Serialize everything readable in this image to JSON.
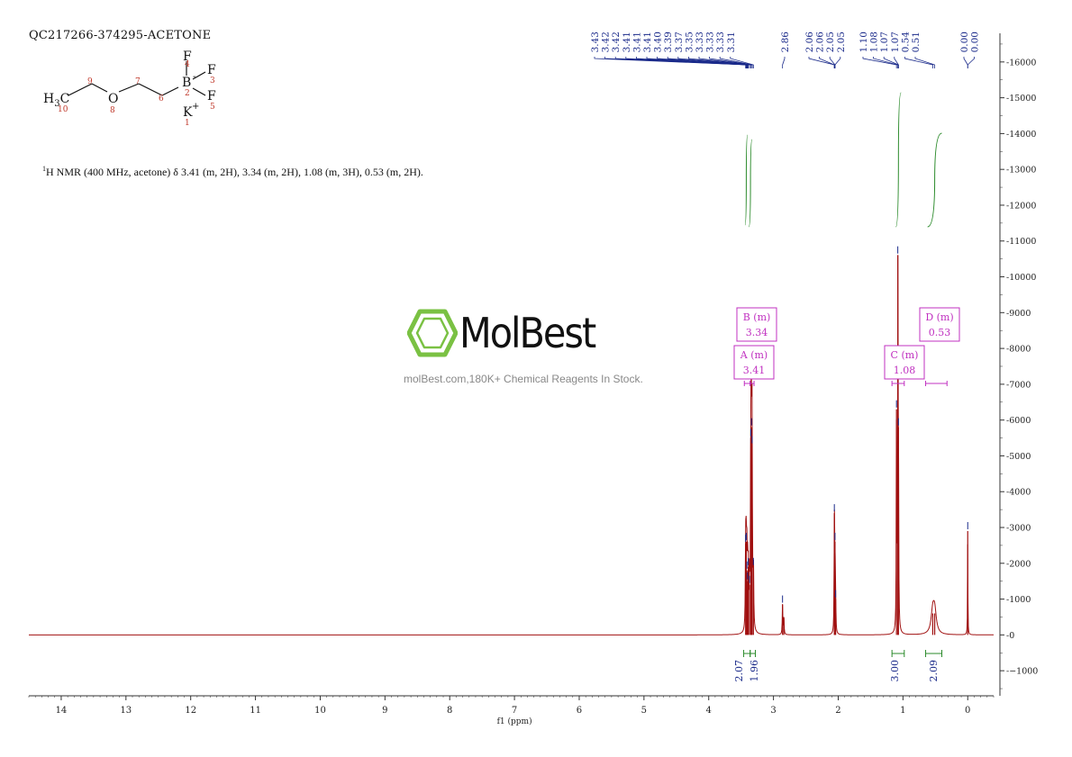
{
  "header": {
    "sample_id": "QC217266-374295-ACETONE",
    "nmr_text_pre": "H NMR (400 MHz, acetone) δ 3.41 (m, 2H), 3.34 (m, 2H), 1.08 (m, 3H), 0.53 (m, 2H).",
    "nmr_superscript": "1"
  },
  "structure": {
    "labels": [
      "H3C",
      "O",
      "B",
      "F",
      "F",
      "F",
      "K+"
    ],
    "atom_numbers": [
      "10",
      "9",
      "8",
      "7",
      "6",
      "2",
      "4",
      "3",
      "5",
      "1"
    ]
  },
  "watermark": {
    "brand": "MolBest",
    "tagline": "molBest.com,180K+ Chemical Reagents In Stock.",
    "brand_color": "#7ac143"
  },
  "chart_data": {
    "type": "line",
    "xlabel": "f1 (ppm)",
    "xlim": [
      14.5,
      -0.4
    ],
    "ylim": [
      -1700,
      16800
    ],
    "x_ticks": [
      14,
      13,
      12,
      11,
      10,
      9,
      8,
      7,
      6,
      5,
      4,
      3,
      2,
      1,
      0
    ],
    "y_ticks": [
      -1000,
      0,
      1000,
      2000,
      3000,
      4000,
      5000,
      6000,
      7000,
      8000,
      9000,
      10000,
      11000,
      12000,
      13000,
      14000,
      15000,
      16000
    ],
    "peaks": [
      {
        "ppm": 3.43,
        "height": 2550,
        "width": 0.005
      },
      {
        "ppm": 3.42,
        "height": 2600,
        "width": 0.005
      },
      {
        "ppm": 3.41,
        "height": 1800,
        "width": 0.005
      },
      {
        "ppm": 3.4,
        "height": 1500,
        "width": 0.005
      },
      {
        "ppm": 3.39,
        "height": 1900,
        "width": 0.005
      },
      {
        "ppm": 3.37,
        "height": 1400,
        "width": 0.005
      },
      {
        "ppm": 3.35,
        "height": 5500,
        "width": 0.005
      },
      {
        "ppm": 3.34,
        "height": 5800,
        "width": 0.005
      },
      {
        "ppm": 3.33,
        "height": 5300,
        "width": 0.005
      },
      {
        "ppm": 3.31,
        "height": 1900,
        "width": 0.005
      },
      {
        "ppm": 2.86,
        "height": 850,
        "width": 0.005
      },
      {
        "ppm": 2.84,
        "height": 500,
        "width": 0.005
      },
      {
        "ppm": 2.06,
        "height": 3400,
        "width": 0.004
      },
      {
        "ppm": 2.05,
        "height": 2600,
        "width": 0.004
      },
      {
        "ppm": 2.04,
        "height": 1000,
        "width": 0.004
      },
      {
        "ppm": 1.1,
        "height": 6300,
        "width": 0.004
      },
      {
        "ppm": 1.08,
        "height": 10600,
        "width": 0.004
      },
      {
        "ppm": 1.07,
        "height": 5800,
        "width": 0.004
      },
      {
        "ppm": 0.54,
        "height": 600,
        "width": 0.03
      },
      {
        "ppm": 0.51,
        "height": 600,
        "width": 0.03
      },
      {
        "ppm": 0.0,
        "height": 2900,
        "width": 0.003
      }
    ],
    "peak_labels": [
      "3.43",
      "3.42",
      "3.42",
      "3.41",
      "3.41",
      "3.41",
      "3.40",
      "3.39",
      "3.37",
      "3.35",
      "3.33",
      "3.33",
      "3.33",
      "3.31",
      "2.86",
      "2.06",
      "2.06",
      "2.05",
      "2.05",
      "1.10",
      "1.08",
      "1.07",
      "1.07",
      "0.54",
      "0.51",
      "0.00",
      "0.00"
    ],
    "peak_label_ppm": [
      3.43,
      3.42,
      3.42,
      3.41,
      3.41,
      3.41,
      3.4,
      3.39,
      3.37,
      3.35,
      3.33,
      3.33,
      3.33,
      3.31,
      2.86,
      2.06,
      2.06,
      2.05,
      2.05,
      1.1,
      1.08,
      1.07,
      1.07,
      0.54,
      0.51,
      0.0,
      0.0
    ],
    "multiplets": [
      {
        "id": "A",
        "mult": "m",
        "shift": "3.41",
        "range": [
          3.45,
          3.36
        ]
      },
      {
        "id": "B",
        "mult": "m",
        "shift": "3.34",
        "range": [
          3.36,
          3.3
        ]
      },
      {
        "id": "C",
        "mult": "m",
        "shift": "1.08",
        "range": [
          1.17,
          0.98
        ]
      },
      {
        "id": "D",
        "mult": "m",
        "shift": "0.53",
        "range": [
          0.65,
          0.32
        ]
      }
    ],
    "integrals": [
      {
        "value": "2.07",
        "range": [
          3.46,
          3.36
        ]
      },
      {
        "value": "1.96",
        "range": [
          3.36,
          3.28
        ]
      },
      {
        "value": "3.00",
        "range": [
          1.17,
          0.98
        ]
      },
      {
        "value": "2.09",
        "range": [
          0.65,
          0.4
        ]
      }
    ],
    "colors": {
      "spectrum": "#a01010",
      "peak_pick": "#1a2a8a",
      "integral": "#2a8a2a",
      "multiplet": "#c030c0",
      "axis": "#333333"
    }
  }
}
